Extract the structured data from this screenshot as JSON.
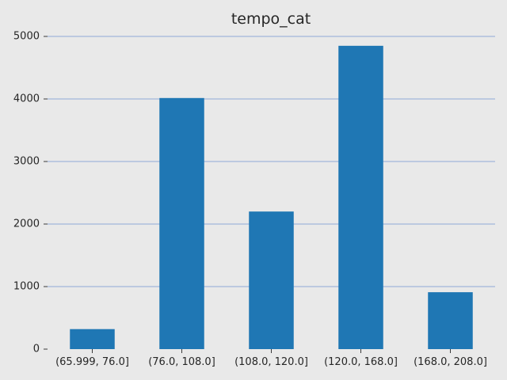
{
  "chart_data": {
    "type": "bar",
    "title": "tempo_cat",
    "xlabel": "",
    "ylabel": "",
    "categories": [
      "(65.999, 76.0]",
      "(76.0, 108.0]",
      "(108.0, 120.0]",
      "(120.0, 168.0]",
      "(168.0, 208.0]"
    ],
    "values": [
      320,
      4015,
      2200,
      4850,
      910
    ],
    "ylim": [
      0,
      5000
    ],
    "yticks": [
      0,
      1000,
      2000,
      3000,
      4000,
      5000
    ],
    "grid": "y-axis on",
    "legend": "none",
    "bar_color": "#1f77b4",
    "background_color": "#e9e9e9",
    "grid_color": "#8ea9d8"
  }
}
